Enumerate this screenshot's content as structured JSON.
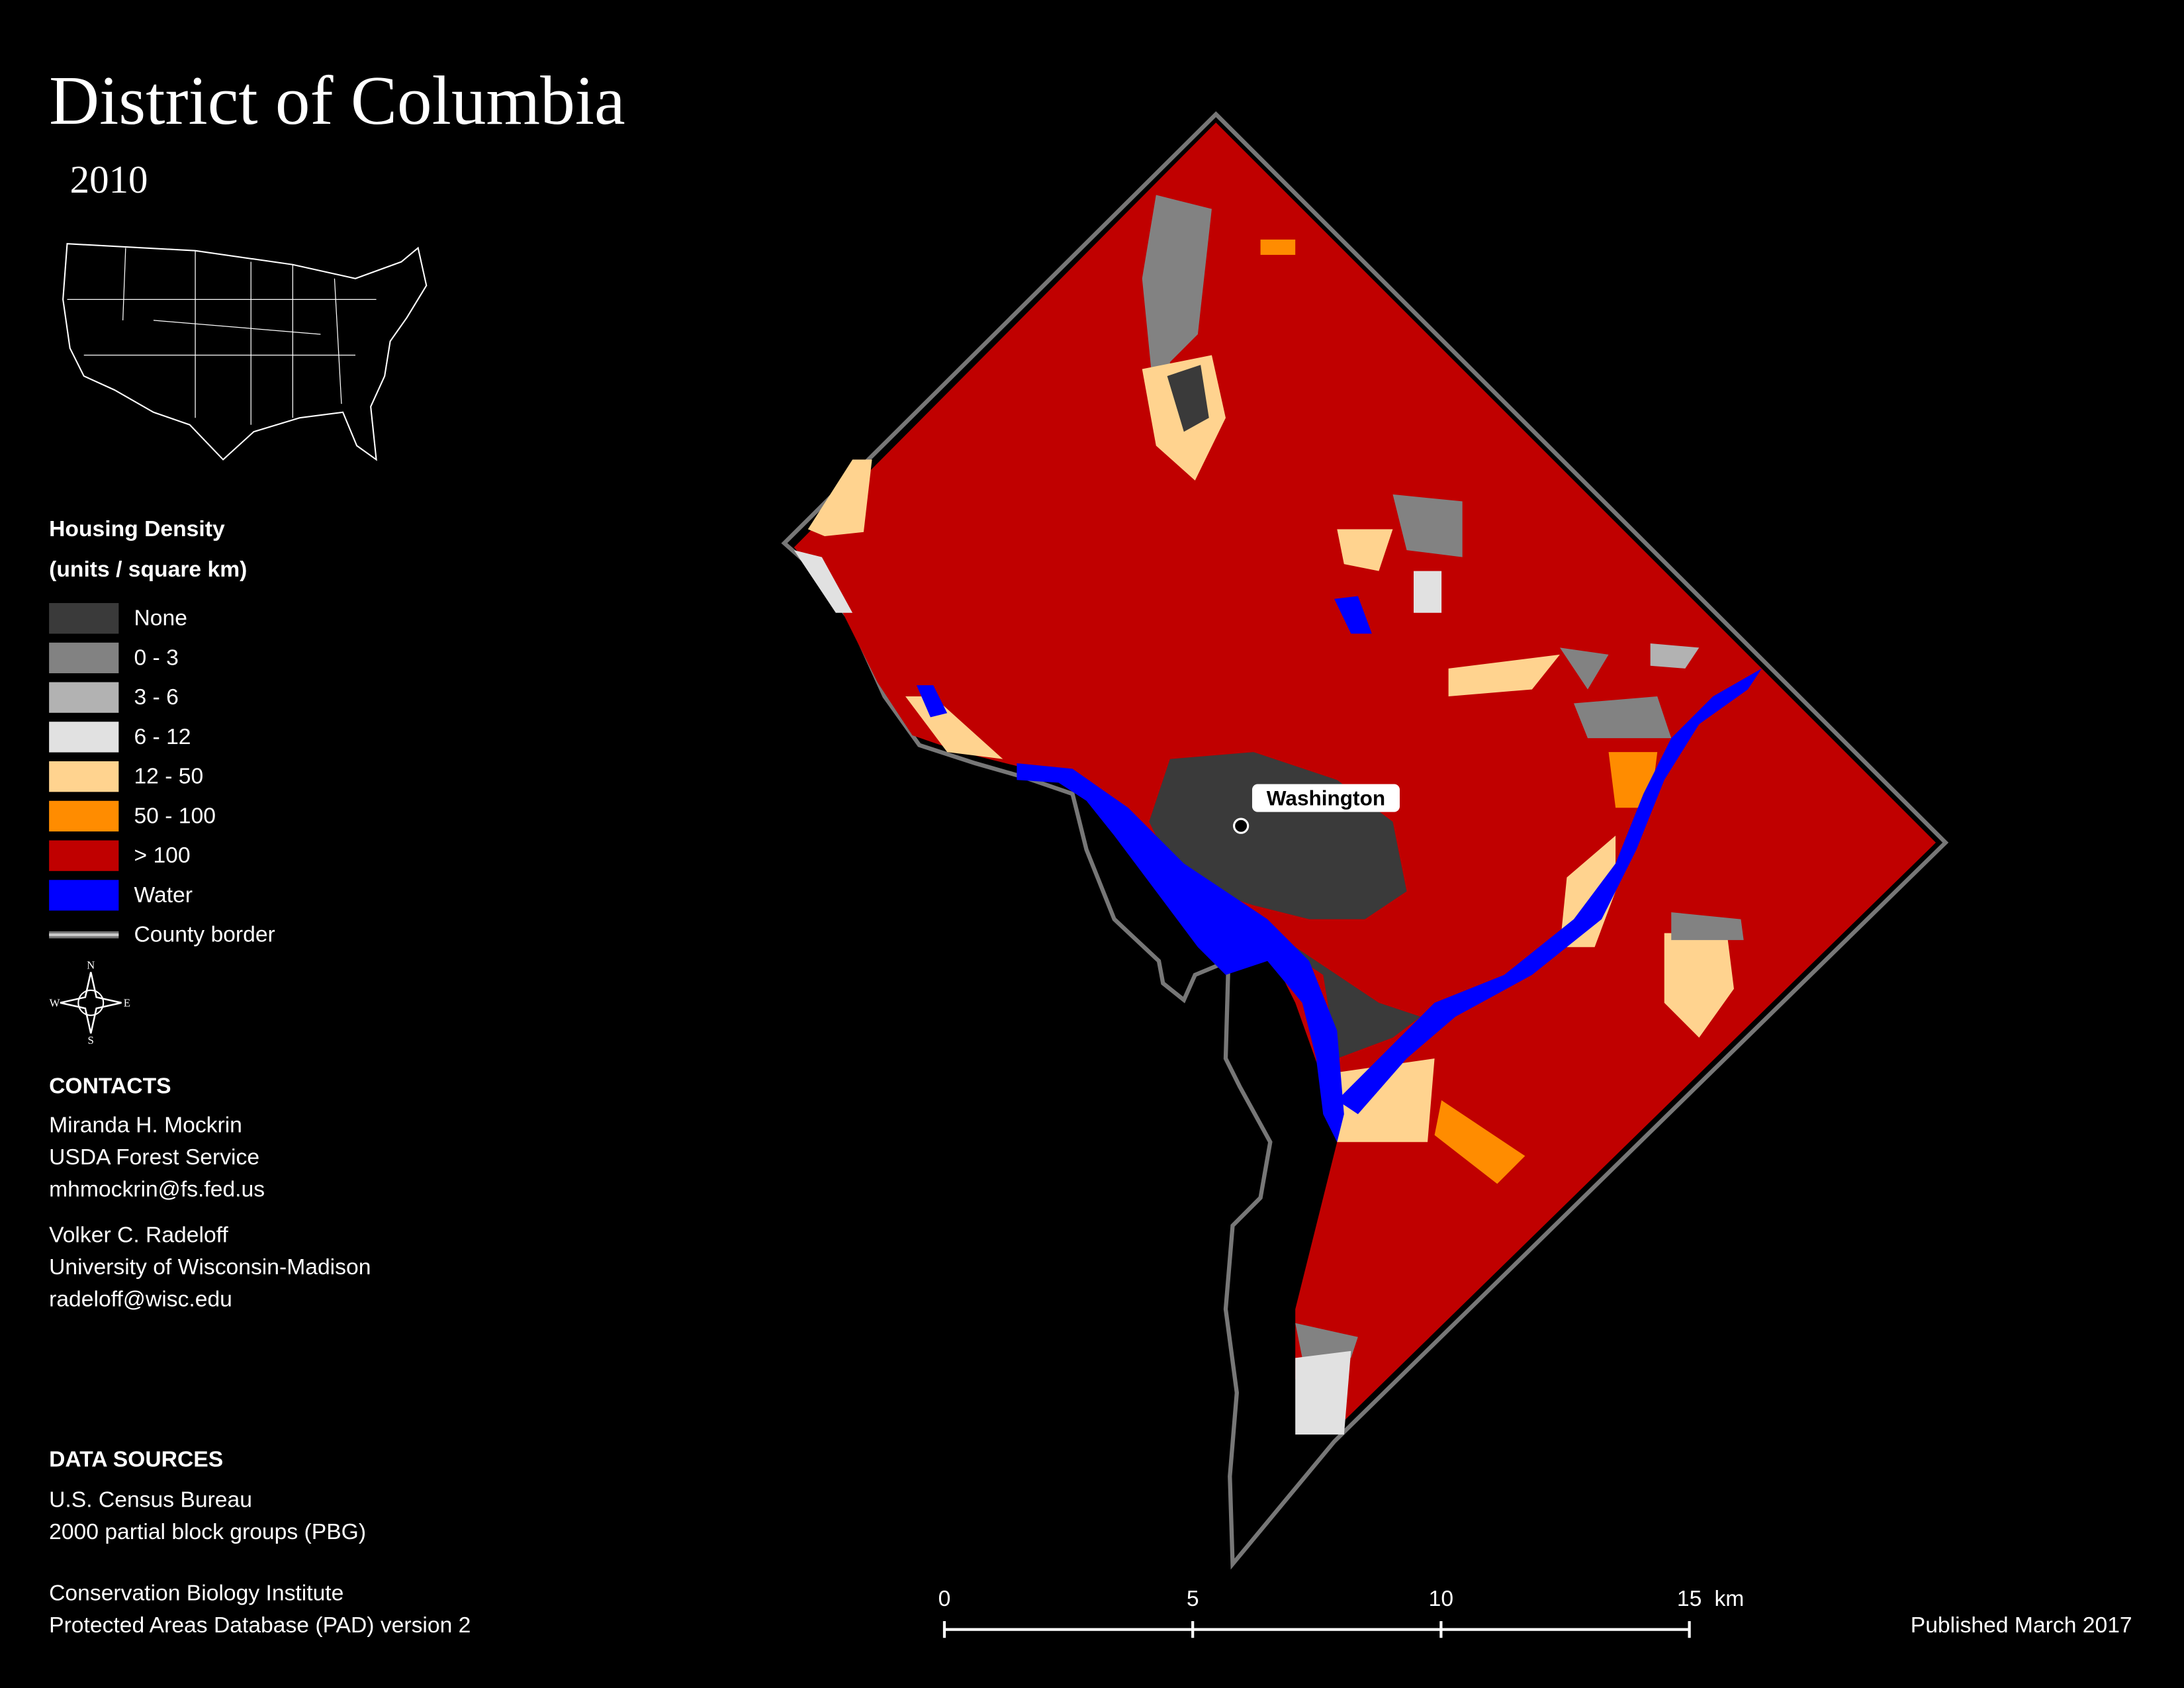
{
  "title": "District of Columbia",
  "subtitle": "2010",
  "legend": {
    "title": [
      "Housing Density",
      "(units / square km)"
    ],
    "items": [
      {
        "label": "None",
        "color": "#3a3a3a"
      },
      {
        "label": "0 - 3",
        "color": "#828282"
      },
      {
        "label": "3 - 6",
        "color": "#b2b2b2"
      },
      {
        "label": "6 - 12",
        "color": "#e1e1e1"
      },
      {
        "label": "12 - 50",
        "color": "#ffd38f"
      },
      {
        "label": "50 - 100",
        "color": "#ff8c00"
      },
      {
        "label": "> 100",
        "color": "#c00000"
      },
      {
        "label": "Water",
        "color": "#0000ff"
      },
      {
        "label": "County border",
        "color": "#cccccc",
        "symbol": "line"
      }
    ]
  },
  "compass": {
    "n": "N",
    "e": "E",
    "s": "S",
    "w": "W"
  },
  "place_label": "Washington",
  "contacts": {
    "heading": "CONTACTS",
    "people": [
      [
        "Miranda H. Mockrin",
        "USDA Forest Service",
        "mhmockrin@fs.fed.us"
      ],
      [
        "Volker C. Radeloff",
        "University of Wisconsin-Madison",
        "radeloff@wisc.edu"
      ]
    ]
  },
  "data_sources": {
    "heading": "DATA SOURCES",
    "groups": [
      [
        "U.S. Census Bureau",
        "2000 partial block groups (PBG)"
      ],
      [
        "Conservation Biology Institute",
        "Protected Areas Database (PAD) version 2"
      ]
    ]
  },
  "scale_bar": {
    "range": [
      0,
      15
    ],
    "ticks": [
      0,
      5,
      10,
      15
    ],
    "unit": "km"
  },
  "footer": "Published March 2017"
}
